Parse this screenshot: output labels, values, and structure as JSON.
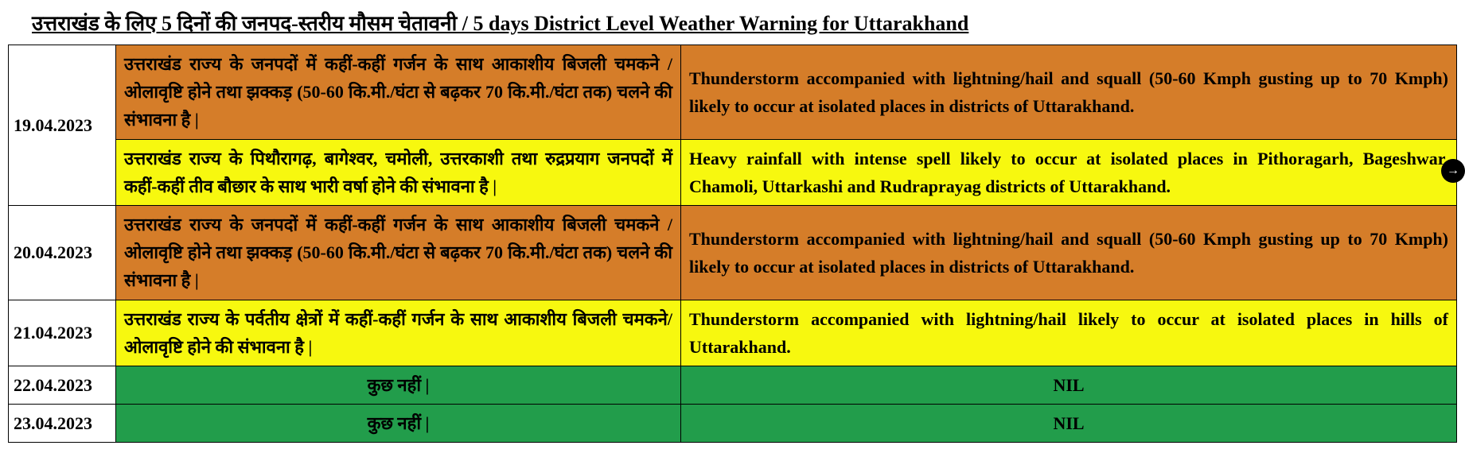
{
  "title": "उत्तराखंड के लिए 5 दिनों की जनपद-स्तरीय मौसम चेतावनी / 5 days District Level Weather Warning for Uttarakhand",
  "colors": {
    "orange": "#d57d29",
    "yellow": "#f7f80f",
    "green": "#229d4b",
    "white": "#ffffff",
    "black": "#000000"
  },
  "columns": [
    "date",
    "hindi",
    "english"
  ],
  "column_widths": [
    "135px",
    "710px",
    "auto"
  ],
  "rows": [
    {
      "date": "19.04.2023",
      "warnings": [
        {
          "color": "orange",
          "hindi": "उत्तराखंड राज्य के जनपदों में कहीं-कहीं गर्जन के साथ आकाशीय बिजली चमकने / ओलावृष्टि होने तथा झक्कड़ (50-60 कि.मी./घंटा से बढ़कर 70 कि.मी./घंटा तक) चलने की संभावना है |",
          "english": "Thunderstorm accompanied with lightning/hail and squall (50-60 Kmph gusting up to 70 Kmph) likely to occur at isolated places in districts of Uttarakhand."
        },
        {
          "color": "yellow",
          "hindi": "उत्तराखंड राज्य के पिथौरागढ़, बागेश्वर, चमोली, उत्तरकाशी तथा रुद्रप्रयाग जनपदों में कहीं-कहीं तीव बौछार के साथ भारी वर्षा होने की संभावना है |",
          "english": "Heavy rainfall with intense spell likely to occur at isolated places in Pithoragarh, Bageshwar, Chamoli, Uttarkashi and Rudraprayag districts of Uttarakhand."
        }
      ]
    },
    {
      "date": "20.04.2023",
      "warnings": [
        {
          "color": "orange",
          "hindi": "उत्तराखंड राज्य के जनपदों में कहीं-कहीं गर्जन के साथ आकाशीय बिजली चमकने / ओलावृष्टि होने तथा झक्कड़ (50-60 कि.मी./घंटा से बढ़कर 70 कि.मी./घंटा तक) चलने की संभावना है |",
          "english": "Thunderstorm accompanied with lightning/hail and squall (50-60 Kmph gusting up to 70 Kmph) likely to occur at isolated places in districts of Uttarakhand."
        }
      ]
    },
    {
      "date": "21.04.2023",
      "warnings": [
        {
          "color": "yellow",
          "hindi": "उत्तराखंड राज्य के पर्वतीय क्षेत्रों में कहीं-कहीं गर्जन के साथ आकाशीय बिजली चमकने/ ओलावृष्टि होने की संभावना है |",
          "english": "Thunderstorm accompanied with lightning/hail likely to occur at isolated places in hills of Uttarakhand."
        }
      ]
    },
    {
      "date": "22.04.2023",
      "warnings": [
        {
          "color": "green",
          "hindi": "कुछ नहीं |",
          "english": "NIL",
          "align": "center"
        }
      ]
    },
    {
      "date": "23.04.2023",
      "warnings": [
        {
          "color": "green",
          "hindi": "कुछ नहीं |",
          "english": "NIL",
          "align": "center"
        }
      ]
    }
  ],
  "typography": {
    "title_fontsize": 26,
    "cell_fontsize": 22,
    "font_family": "Times New Roman",
    "font_weight": "bold"
  }
}
